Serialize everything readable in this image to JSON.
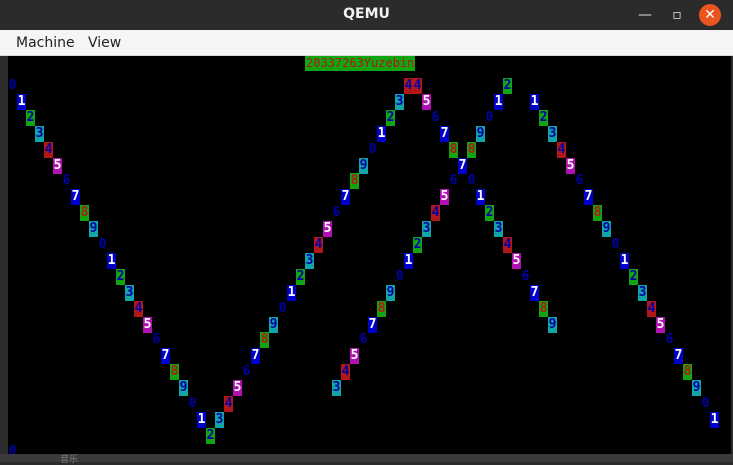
{
  "window": {
    "title": "QEMU"
  },
  "menu": {
    "items": [
      "Machine",
      "View"
    ]
  },
  "screen": {
    "header": "20337263Yuzebin",
    "palette": {
      "blue_fg": "#0000aa",
      "blue_bg": "#0000cc",
      "green": "#11a511",
      "cyan": "#11a5a5",
      "red": "#b01818",
      "magenta": "#b011b0",
      "white": "#ffffff"
    }
  },
  "desktop": {
    "bottom_text": "音乐"
  }
}
